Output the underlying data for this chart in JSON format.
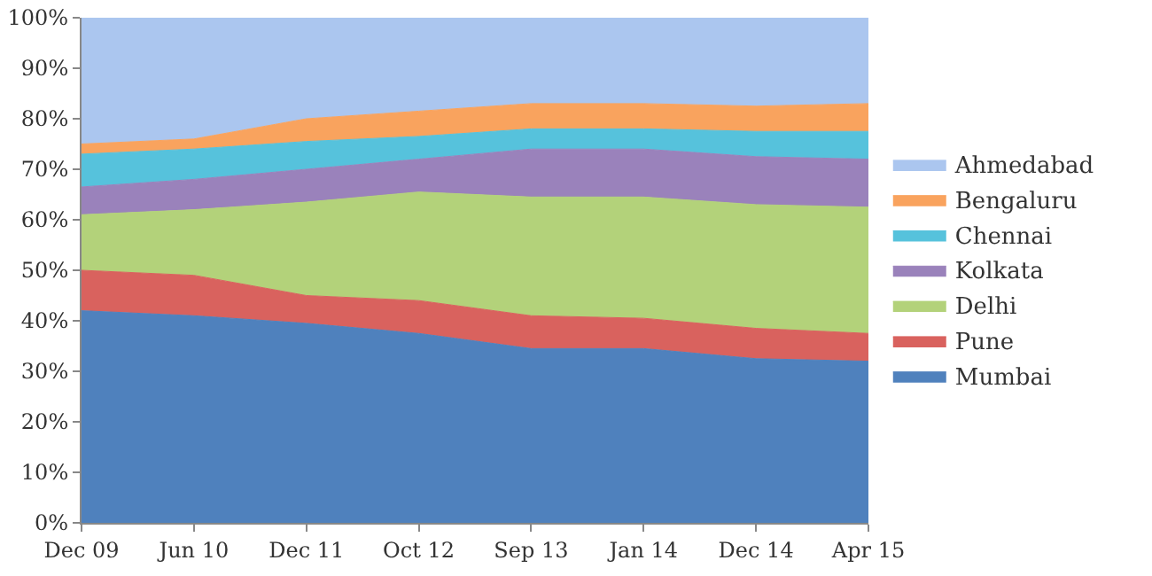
{
  "chart_data": {
    "type": "area",
    "stacked": true,
    "legend": "right",
    "categories": [
      "Dec 09",
      "Jun 10",
      "Dec 11",
      "Oct 12",
      "Sep 13",
      "Jan 14",
      "Dec 14",
      "Apr 15"
    ],
    "ylim": [
      0,
      100
    ],
    "yticks": [
      {
        "value": 0,
        "label": "0%"
      },
      {
        "value": 10,
        "label": "10%"
      },
      {
        "value": 20,
        "label": "20%"
      },
      {
        "value": 30,
        "label": "30%"
      },
      {
        "value": 40,
        "label": "40%"
      },
      {
        "value": 50,
        "label": "50%"
      },
      {
        "value": 60,
        "label": "60%"
      },
      {
        "value": 70,
        "label": "70%"
      },
      {
        "value": 80,
        "label": "80%"
      },
      {
        "value": 90,
        "label": "90%"
      },
      {
        "value": 100,
        "label": "100%"
      }
    ],
    "series": [
      {
        "name": "Mumbai",
        "color": "#4f81bd",
        "values": [
          42,
          41,
          39.5,
          37.5,
          34.5,
          34.5,
          32.5,
          32
        ]
      },
      {
        "name": "Pune",
        "color": "#d9625e",
        "values": [
          8,
          8,
          5.5,
          6.5,
          6.5,
          6,
          6,
          5.5
        ]
      },
      {
        "name": "Delhi",
        "color": "#b3d27a",
        "values": [
          11,
          13,
          18.5,
          21.5,
          23.5,
          24,
          24.5,
          25
        ]
      },
      {
        "name": "Kolkata",
        "color": "#9a82bb",
        "values": [
          5.5,
          6,
          6.5,
          6.5,
          9.5,
          9.5,
          9.5,
          9.5
        ]
      },
      {
        "name": "Chennai",
        "color": "#56c2dc",
        "values": [
          6.5,
          6,
          5.5,
          4.5,
          4,
          4,
          5,
          5.5
        ]
      },
      {
        "name": "Bengaluru",
        "color": "#f9a35e",
        "values": [
          2,
          2,
          4.5,
          5,
          5,
          5,
          5,
          5.5
        ]
      },
      {
        "name": "Ahmedabad",
        "color": "#abc6ef",
        "values": [
          25,
          24,
          20,
          18.5,
          17,
          17,
          17.5,
          17
        ]
      }
    ]
  }
}
